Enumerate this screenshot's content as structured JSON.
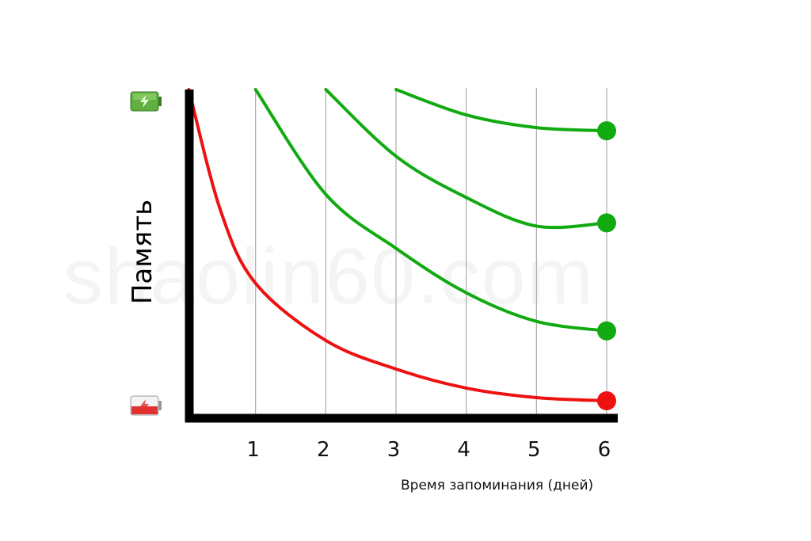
{
  "chart_data": {
    "type": "line",
    "title": "",
    "ylabel": "Память",
    "xlabel": "Время запоминания (дней)",
    "x_ticks": [
      "1",
      "2",
      "3",
      "4",
      "5",
      "6"
    ],
    "xlim": [
      0,
      6
    ],
    "ylim": [
      0,
      1
    ],
    "grid": "vertical",
    "y_axis_icons": {
      "top": "battery-full-icon",
      "bottom": "battery-low-icon"
    },
    "series": [
      {
        "color": "#ee1111",
        "x": [
          0.05,
          0.5,
          1,
          2,
          3,
          4,
          5,
          6
        ],
        "y": [
          1.0,
          0.62,
          0.39,
          0.21,
          0.12,
          0.06,
          0.03,
          0.02
        ]
      },
      {
        "color": "#11aa11",
        "x": [
          1,
          2,
          3,
          4,
          5,
          6
        ],
        "y": [
          1.0,
          0.67,
          0.5,
          0.36,
          0.27,
          0.24
        ]
      },
      {
        "color": "#11aa11",
        "x": [
          2,
          3,
          4,
          5,
          6
        ],
        "y": [
          1.0,
          0.79,
          0.66,
          0.57,
          0.58
        ]
      },
      {
        "color": "#11aa11",
        "x": [
          3,
          4,
          5,
          6
        ],
        "y": [
          1.0,
          0.92,
          0.88,
          0.87
        ]
      }
    ],
    "watermark": "shaolin60.com"
  }
}
